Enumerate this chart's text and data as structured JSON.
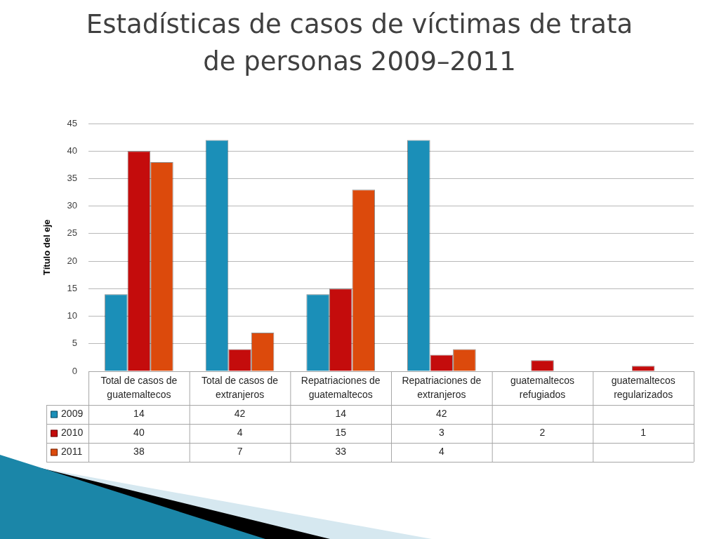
{
  "chart_data": {
    "type": "bar",
    "title": "Estadísticas de casos de víctimas de trata de personas 2009–2011",
    "ylabel": "Título del eje",
    "categories": [
      "Total de casos de guatemaltecos",
      "Total de casos de extranjeros",
      "Repatriaciones de guatemaltecos",
      "Repatriaciones de extranjeros",
      "guatemaltecos refugiados",
      "guatemaltecos regularizados"
    ],
    "series": [
      {
        "name": "2009",
        "color": "#1b8fb8",
        "values": [
          14,
          42,
          14,
          42,
          null,
          null
        ]
      },
      {
        "name": "2010",
        "color": "#c40c0c",
        "values": [
          40,
          4,
          15,
          3,
          2,
          1
        ]
      },
      {
        "name": "2011",
        "color": "#dc4a0c",
        "values": [
          38,
          7,
          33,
          4,
          null,
          null
        ]
      }
    ],
    "ylim": [
      0,
      45
    ],
    "yticks": [
      0,
      5,
      10,
      15,
      20,
      25,
      30,
      35,
      40,
      45
    ],
    "grid": "y",
    "legend": "bottom left",
    "data_labels": true
  }
}
